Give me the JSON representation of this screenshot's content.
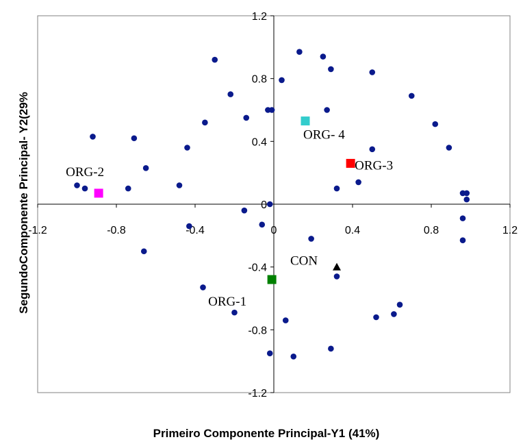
{
  "chart_data": {
    "type": "scatter",
    "xlabel": "Primeiro Componente Principal-Y1 (41%)",
    "ylabel": "SegundoComponente Principal- Y2(29%",
    "xlim": [
      -1.2,
      1.2
    ],
    "ylim": [
      -1.2,
      1.2
    ],
    "x_ticks": [
      "-1.2",
      "-0.8",
      "-0.4",
      "0",
      "0.4",
      "0.8",
      "1.2"
    ],
    "y_ticks": [
      "1.2",
      "0.8",
      "0.4",
      "0",
      "-0.4",
      "-0.8",
      "-1.2"
    ],
    "grid": false,
    "variables": {
      "color": "#0a1a8c",
      "points": [
        [
          -1.0,
          0.12
        ],
        [
          -0.96,
          0.1
        ],
        [
          -0.92,
          0.43
        ],
        [
          -0.74,
          0.1
        ],
        [
          -0.71,
          0.42
        ],
        [
          -0.66,
          -0.3
        ],
        [
          -0.65,
          0.23
        ],
        [
          -0.48,
          0.12
        ],
        [
          -0.44,
          0.36
        ],
        [
          -0.43,
          -0.14
        ],
        [
          -0.35,
          0.52
        ],
        [
          -0.36,
          -0.53
        ],
        [
          -0.3,
          0.92
        ],
        [
          -0.22,
          0.7
        ],
        [
          -0.2,
          -0.69
        ],
        [
          -0.15,
          -0.04
        ],
        [
          -0.14,
          0.55
        ],
        [
          -0.06,
          -0.13
        ],
        [
          -0.03,
          0.6
        ],
        [
          -0.01,
          0.6
        ],
        [
          -0.02,
          0.0
        ],
        [
          -0.02,
          -0.95
        ],
        [
          0.04,
          0.79
        ],
        [
          0.06,
          -0.74
        ],
        [
          0.1,
          -0.97
        ],
        [
          0.13,
          0.97
        ],
        [
          0.19,
          -0.22
        ],
        [
          0.25,
          0.94
        ],
        [
          0.27,
          0.6
        ],
        [
          0.29,
          0.86
        ],
        [
          0.29,
          -0.92
        ],
        [
          0.32,
          0.1
        ],
        [
          0.32,
          -0.46
        ],
        [
          0.43,
          0.14
        ],
        [
          0.5,
          0.35
        ],
        [
          0.5,
          0.84
        ],
        [
          0.52,
          -0.72
        ],
        [
          0.61,
          -0.7
        ],
        [
          0.64,
          -0.64
        ],
        [
          0.7,
          0.69
        ],
        [
          0.82,
          0.51
        ],
        [
          0.89,
          0.36
        ],
        [
          0.96,
          0.07
        ],
        [
          0.96,
          -0.09
        ],
        [
          0.96,
          -0.23
        ],
        [
          0.98,
          0.07
        ],
        [
          0.98,
          0.03
        ]
      ]
    },
    "groups": [
      {
        "name": "ORG-2",
        "x": -0.89,
        "y": 0.07,
        "color": "#ff00ff",
        "marker": "square"
      },
      {
        "name": "ORG- 4",
        "x": 0.16,
        "y": 0.53,
        "color": "#33cccc",
        "marker": "square"
      },
      {
        "name": "ORG-3",
        "x": 0.39,
        "y": 0.26,
        "color": "#ff0000",
        "marker": "square"
      },
      {
        "name": "ORG-1",
        "x": -0.01,
        "y": -0.48,
        "color": "#008000",
        "marker": "square"
      },
      {
        "name": "CON",
        "x": 0.32,
        "y": -0.4,
        "color": "#000000",
        "marker": "triangle"
      }
    ]
  }
}
